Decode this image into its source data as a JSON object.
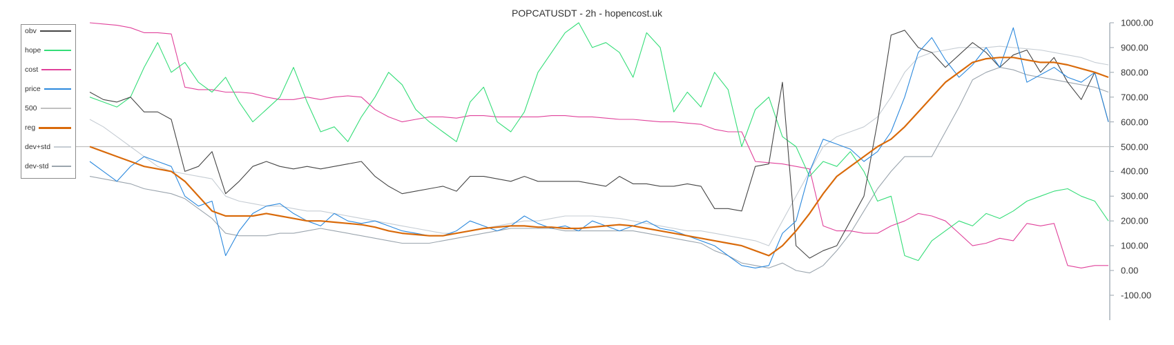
{
  "title": "POPCATUSDT - 2h - hopencost.uk",
  "legend": [
    {
      "label": "obv",
      "color": "#444444"
    },
    {
      "label": "hope",
      "color": "#33dd77"
    },
    {
      "label": "cost",
      "color": "#e0409a"
    },
    {
      "label": "price",
      "color": "#2a88dd"
    },
    {
      "label": "500",
      "color": "#c0c0c0"
    },
    {
      "label": "reg",
      "color": "#d96a0a"
    },
    {
      "label": "dev+std",
      "color": "#c5ccd3"
    },
    {
      "label": "dev-std",
      "color": "#9aa4ad"
    }
  ],
  "axis": {
    "ticks": [
      "1000.00",
      "900.00",
      "800.00",
      "700.00",
      "600.00",
      "500.00",
      "400.00",
      "300.00",
      "200.00",
      "100.00",
      "0.00",
      "-100.00"
    ]
  },
  "chart_data": {
    "type": "line",
    "title": "POPCATUSDT - 2h - hopencost.uk",
    "xlabel": "",
    "ylabel": "",
    "ylim": [
      -100,
      1000
    ],
    "y_axis_position": "right",
    "legend_position": "top-left",
    "grid": false,
    "x": [
      0,
      1,
      2,
      3,
      4,
      5,
      6,
      7,
      8,
      9,
      10,
      11,
      12,
      13,
      14,
      15,
      16,
      17,
      18,
      19,
      20,
      21,
      22,
      23,
      24,
      25,
      26,
      27,
      28,
      29,
      30,
      31,
      32,
      33,
      34,
      35,
      36,
      37,
      38,
      39,
      40,
      41,
      42,
      43,
      44,
      45,
      46,
      47,
      48,
      49,
      50,
      51,
      52,
      53,
      54,
      55,
      56,
      57,
      58,
      59,
      60,
      61,
      62,
      63,
      64,
      65,
      66,
      67,
      68,
      69,
      70,
      71,
      72,
      73,
      74,
      75
    ],
    "series": [
      {
        "name": "obv",
        "values": [
          720,
          690,
          680,
          700,
          640,
          640,
          610,
          400,
          420,
          480,
          310,
          360,
          420,
          440,
          420,
          410,
          420,
          410,
          420,
          430,
          440,
          380,
          340,
          310,
          320,
          330,
          340,
          320,
          380,
          380,
          370,
          360,
          380,
          360,
          360,
          360,
          360,
          350,
          340,
          380,
          350,
          350,
          340,
          340,
          350,
          340,
          250,
          250,
          240,
          420,
          430,
          760,
          100,
          50,
          80,
          100,
          200,
          300,
          600,
          950,
          970,
          900,
          880,
          820,
          870,
          920,
          880,
          820,
          870,
          890,
          800,
          860,
          760,
          690,
          800,
          600
        ]
      },
      {
        "name": "hope",
        "values": [
          700,
          680,
          660,
          700,
          820,
          920,
          800,
          840,
          760,
          720,
          780,
          680,
          600,
          650,
          700,
          820,
          680,
          560,
          580,
          520,
          620,
          700,
          800,
          750,
          650,
          600,
          560,
          520,
          680,
          740,
          600,
          560,
          640,
          800,
          880,
          960,
          1000,
          900,
          920,
          880,
          780,
          960,
          900,
          640,
          720,
          660,
          800,
          730,
          500,
          650,
          700,
          540,
          500,
          380,
          440,
          420,
          480,
          400,
          280,
          300,
          60,
          40,
          120,
          160,
          200,
          180,
          230,
          210,
          240,
          280,
          300,
          320,
          330,
          300,
          280,
          200
        ]
      },
      {
        "name": "cost",
        "values": [
          1000,
          995,
          990,
          980,
          960,
          960,
          955,
          740,
          730,
          730,
          720,
          720,
          715,
          700,
          690,
          690,
          700,
          690,
          700,
          705,
          700,
          650,
          620,
          600,
          610,
          620,
          620,
          615,
          625,
          625,
          620,
          620,
          620,
          620,
          625,
          625,
          620,
          620,
          615,
          610,
          610,
          605,
          600,
          600,
          595,
          590,
          570,
          560,
          560,
          440,
          435,
          430,
          420,
          410,
          180,
          160,
          160,
          150,
          150,
          180,
          200,
          230,
          220,
          200,
          150,
          100,
          110,
          130,
          120,
          190,
          180,
          190,
          20,
          10,
          20,
          20
        ]
      },
      {
        "name": "price",
        "values": [
          440,
          400,
          360,
          420,
          460,
          440,
          420,
          300,
          260,
          280,
          60,
          160,
          230,
          260,
          270,
          230,
          200,
          180,
          230,
          200,
          190,
          200,
          180,
          160,
          150,
          140,
          140,
          160,
          200,
          180,
          160,
          180,
          220,
          190,
          170,
          180,
          160,
          200,
          180,
          160,
          180,
          200,
          170,
          160,
          140,
          120,
          100,
          60,
          20,
          10,
          20,
          150,
          200,
          400,
          530,
          510,
          490,
          440,
          480,
          560,
          700,
          880,
          940,
          850,
          780,
          830,
          900,
          820,
          980,
          760,
          790,
          820,
          780,
          760,
          800,
          600
        ]
      },
      {
        "name": "500",
        "values": [
          500,
          500,
          500,
          500,
          500,
          500,
          500,
          500,
          500,
          500,
          500,
          500,
          500,
          500,
          500,
          500,
          500,
          500,
          500,
          500,
          500,
          500,
          500,
          500,
          500,
          500,
          500,
          500,
          500,
          500,
          500,
          500,
          500,
          500,
          500,
          500,
          500,
          500,
          500,
          500,
          500,
          500,
          500,
          500,
          500,
          500,
          500,
          500,
          500,
          500,
          500,
          500,
          500,
          500,
          500,
          500,
          500,
          500,
          500,
          500,
          500,
          500,
          500,
          500,
          500,
          500,
          500,
          500,
          500,
          500,
          500,
          500,
          500,
          500,
          500,
          500
        ]
      },
      {
        "name": "reg",
        "values": [
          500,
          480,
          460,
          440,
          420,
          410,
          400,
          360,
          300,
          240,
          220,
          220,
          220,
          230,
          220,
          210,
          200,
          200,
          195,
          190,
          185,
          175,
          160,
          150,
          145,
          140,
          140,
          150,
          160,
          170,
          175,
          180,
          180,
          175,
          175,
          170,
          170,
          175,
          180,
          185,
          180,
          170,
          160,
          150,
          140,
          130,
          120,
          110,
          100,
          80,
          60,
          100,
          160,
          230,
          310,
          380,
          420,
          460,
          500,
          530,
          580,
          640,
          700,
          760,
          800,
          840,
          855,
          860,
          860,
          850,
          840,
          840,
          830,
          815,
          800,
          780
        ]
      },
      {
        "name": "dev+std",
        "values": [
          610,
          580,
          540,
          500,
          460,
          420,
          400,
          390,
          380,
          370,
          300,
          280,
          270,
          260,
          260,
          250,
          240,
          240,
          230,
          220,
          210,
          200,
          190,
          180,
          170,
          160,
          150,
          150,
          160,
          170,
          180,
          190,
          200,
          200,
          210,
          220,
          220,
          220,
          215,
          210,
          200,
          190,
          180,
          170,
          160,
          160,
          150,
          140,
          130,
          120,
          100,
          200,
          300,
          400,
          500,
          540,
          560,
          580,
          620,
          700,
          800,
          860,
          880,
          890,
          900,
          900,
          900,
          905,
          900,
          895,
          890,
          880,
          870,
          860,
          840,
          830
        ]
      },
      {
        "name": "dev-std",
        "values": [
          380,
          370,
          360,
          350,
          330,
          320,
          310,
          290,
          250,
          210,
          150,
          140,
          140,
          140,
          150,
          150,
          160,
          170,
          160,
          150,
          140,
          130,
          120,
          110,
          110,
          110,
          120,
          130,
          140,
          150,
          160,
          170,
          170,
          170,
          170,
          160,
          160,
          160,
          160,
          160,
          160,
          150,
          140,
          130,
          120,
          110,
          80,
          60,
          30,
          20,
          10,
          30,
          0,
          -10,
          20,
          80,
          150,
          240,
          330,
          400,
          460,
          460,
          460,
          560,
          660,
          770,
          800,
          820,
          810,
          790,
          780,
          770,
          760,
          750,
          740,
          720
        ]
      }
    ]
  }
}
